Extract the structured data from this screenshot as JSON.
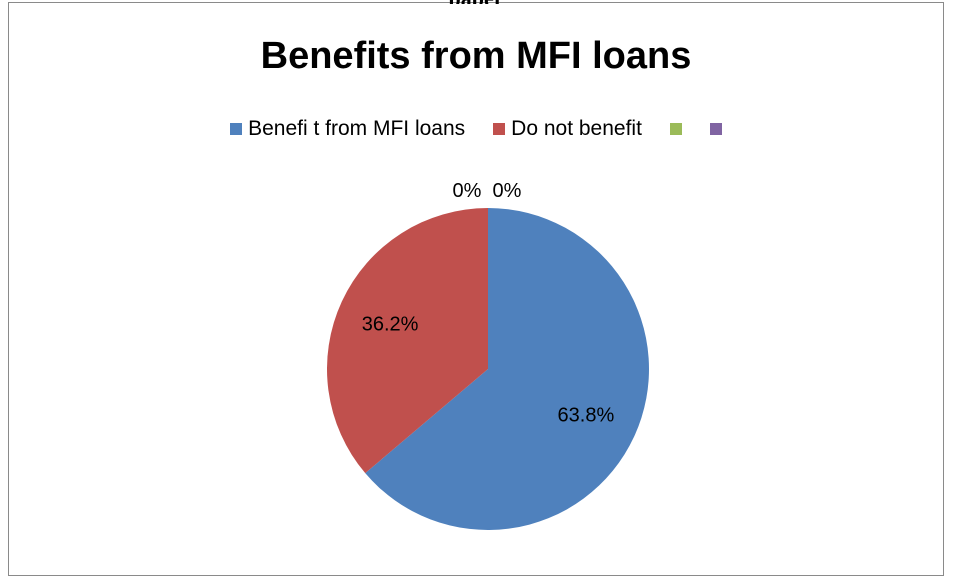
{
  "page": {
    "top_fragment": "paper"
  },
  "chart_data": {
    "type": "pie",
    "title": "Benefits from MFI loans",
    "legend_position": "top",
    "slices": [
      {
        "name": "Benefi t from MFI loans",
        "value": 63.8,
        "label": "63.8%",
        "color": "#4F81BD"
      },
      {
        "name": "Do not benefit",
        "value": 36.2,
        "label": "36.2%",
        "color": "#C0504D"
      },
      {
        "name": "",
        "value": 0,
        "label": "0%",
        "color": "#9BBB59"
      },
      {
        "name": "",
        "value": 0,
        "label": "0%",
        "color": "#8064A2"
      }
    ]
  }
}
